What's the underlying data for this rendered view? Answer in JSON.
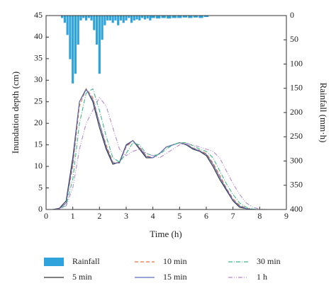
{
  "chart_data": {
    "type": "line",
    "xlabel": "Time (h)",
    "ylabel": "Inundation depth (cm)",
    "y2label": "Rainfall (mm·h)",
    "xlim": [
      0,
      9
    ],
    "xticks": [
      0,
      1,
      2,
      3,
      4,
      5,
      6,
      7,
      8,
      9
    ],
    "ylim": [
      0,
      45
    ],
    "yticks": [
      0,
      5,
      10,
      15,
      20,
      25,
      30,
      35,
      40,
      45
    ],
    "y2lim": [
      0,
      400
    ],
    "y2ticks": [
      0,
      50,
      100,
      150,
      200,
      250,
      300,
      350,
      400
    ],
    "y2_inverted": true,
    "x": [
      0,
      0.25,
      0.5,
      0.75,
      1,
      1.25,
      1.5,
      1.75,
      2,
      2.25,
      2.5,
      2.75,
      3,
      3.25,
      3.5,
      3.75,
      4,
      4.25,
      4.5,
      4.75,
      5,
      5.25,
      5.5,
      5.75,
      6,
      6.25,
      6.5,
      6.75,
      7,
      7.25,
      7.5,
      7.75,
      8,
      8.25,
      8.5,
      8.75,
      9
    ],
    "series": [
      {
        "name": "Rainfall",
        "type": "bar",
        "axis": "y2",
        "color": "#2fa3dc",
        "x": [
          0.6,
          0.7,
          0.8,
          0.9,
          1.0,
          1.1,
          1.2,
          1.3,
          1.4,
          1.5,
          1.6,
          1.7,
          1.8,
          1.9,
          2.0,
          2.1,
          2.2,
          2.3,
          2.4,
          2.5,
          2.6,
          2.7,
          2.8,
          2.9,
          3.0,
          3.1,
          3.2,
          3.3,
          3.4,
          3.5,
          3.6,
          3.7,
          3.8,
          3.9,
          4.0,
          4.2,
          4.4,
          4.6,
          4.8,
          5.0,
          5.2,
          5.4,
          5.6,
          5.8,
          6.0
        ],
        "values": [
          5,
          15,
          40,
          90,
          140,
          120,
          60,
          10,
          5,
          10,
          5,
          10,
          30,
          60,
          120,
          50,
          20,
          10,
          10,
          15,
          10,
          20,
          10,
          15,
          10,
          5,
          15,
          10,
          8,
          10,
          5,
          8,
          6,
          10,
          5,
          6,
          5,
          6,
          5,
          5,
          4,
          5,
          4,
          5,
          3
        ]
      },
      {
        "name": "5 min",
        "color": "#333333",
        "dash": "none",
        "values": [
          0,
          0,
          0.3,
          2,
          12,
          25,
          28,
          25,
          19,
          14,
          10.5,
          11,
          15,
          16,
          14,
          12,
          12,
          13,
          14.5,
          15,
          15.5,
          15,
          14,
          13.5,
          12.5,
          10,
          7,
          4.5,
          2,
          0.5,
          0.2,
          0,
          0,
          0,
          0,
          0,
          0
        ]
      },
      {
        "name": "10 min",
        "color": "#e8743b",
        "dash": "5,3",
        "values": [
          0,
          0,
          0.2,
          1.5,
          10,
          24,
          28,
          26,
          20,
          15,
          11,
          10.8,
          14.5,
          16,
          14.5,
          12.5,
          12,
          13,
          14.5,
          15,
          15.5,
          15.2,
          14.3,
          13.7,
          13,
          10.8,
          8,
          5,
          2.5,
          1,
          0.3,
          0,
          0,
          0,
          0,
          0,
          0
        ]
      },
      {
        "name": "15 min",
        "color": "#5a6fc0",
        "dash": "none",
        "values": [
          0,
          0,
          0.2,
          1.5,
          11,
          25,
          27.8,
          25.5,
          20,
          14.5,
          10.8,
          10.8,
          14.8,
          16,
          14.3,
          12.3,
          12,
          13,
          14.5,
          15,
          15.5,
          15.1,
          14.2,
          13.6,
          12.8,
          10.5,
          7.5,
          4.8,
          2.2,
          0.8,
          0.2,
          0,
          0,
          0,
          0,
          0,
          0
        ]
      },
      {
        "name": "30 min",
        "color": "#3db88a",
        "dash": "6,2,1,2",
        "values": [
          0,
          0,
          0.1,
          1,
          7,
          20,
          27,
          28,
          23,
          17,
          12,
          11,
          13,
          15.5,
          15,
          13,
          12.5,
          12.8,
          14,
          15,
          15.5,
          15.5,
          14.8,
          14,
          13.5,
          12,
          9,
          6,
          3.5,
          1.5,
          0.5,
          0.1,
          0,
          0,
          0,
          0,
          0
        ]
      },
      {
        "name": "1 h",
        "color": "#b48ad0",
        "dash": "6,2,1,2,1,2",
        "values": [
          0,
          0,
          0.1,
          0.8,
          5,
          14,
          20,
          23,
          26,
          24,
          19,
          14,
          12.5,
          13.5,
          14,
          13,
          12.5,
          12,
          13,
          14,
          15,
          15.3,
          15,
          14.5,
          14,
          13.5,
          12,
          9,
          6,
          3.5,
          1.5,
          0.5,
          0.1,
          0,
          0,
          0,
          0
        ]
      }
    ]
  }
}
